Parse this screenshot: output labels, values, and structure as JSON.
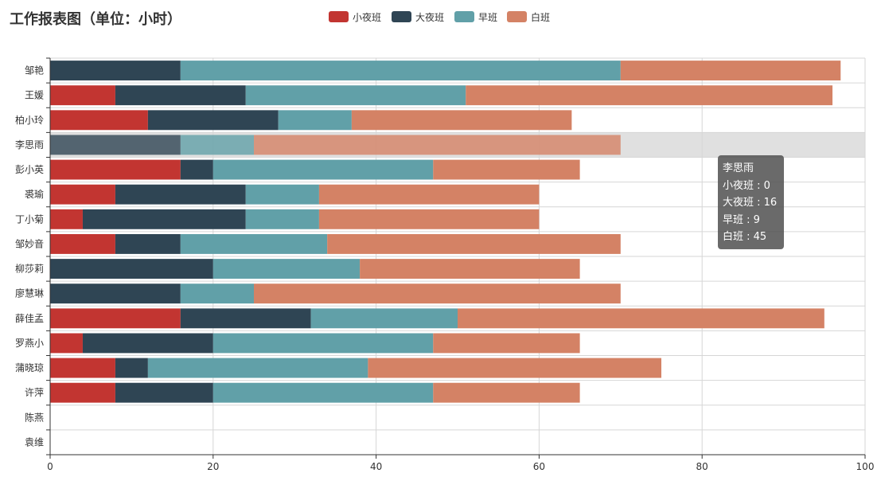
{
  "title": "工作报表图（单位：小时）",
  "colors": [
    "#c23531",
    "#2f4554",
    "#61a0a8",
    "#d48265"
  ],
  "tooltip": {
    "name": "李思雨",
    "lines": [
      "小夜班 : 0",
      "大夜班 : 16",
      "早班 : 9",
      "白班 : 45"
    ]
  },
  "chart_data": {
    "type": "bar",
    "orientation": "horizontal",
    "stacked": true,
    "title": "工作报表图（单位：小时）",
    "xlim": [
      0,
      100
    ],
    "x_ticks": [
      0,
      20,
      40,
      60,
      80,
      100
    ],
    "grid": "vertical",
    "legend_position": "top-center",
    "highlighted_category": "李思雨",
    "categories": [
      "邹艳",
      "王媛",
      "柏小玲",
      "李思雨",
      "彭小英",
      "裘瑜",
      "丁小菊",
      "邹妙音",
      "柳莎莉",
      "廖慧琳",
      "薛佳孟",
      "罗燕小",
      "蒲晓琼",
      "许萍",
      "陈燕",
      "袁维"
    ],
    "series": [
      {
        "name": "小夜班",
        "values": [
          0,
          8,
          12,
          0,
          16,
          8,
          4,
          8,
          0,
          0,
          16,
          4,
          8,
          8,
          0,
          0
        ]
      },
      {
        "name": "大夜班",
        "values": [
          16,
          16,
          16,
          16,
          4,
          16,
          20,
          8,
          20,
          16,
          16,
          16,
          4,
          12,
          0,
          0
        ]
      },
      {
        "name": "早班",
        "values": [
          54,
          27,
          9,
          9,
          27,
          9,
          9,
          18,
          18,
          9,
          18,
          27,
          27,
          27,
          0,
          0
        ]
      },
      {
        "name": "白班",
        "values": [
          27,
          45,
          27,
          45,
          18,
          27,
          27,
          36,
          27,
          45,
          45,
          18,
          36,
          18,
          0,
          0
        ]
      }
    ]
  }
}
